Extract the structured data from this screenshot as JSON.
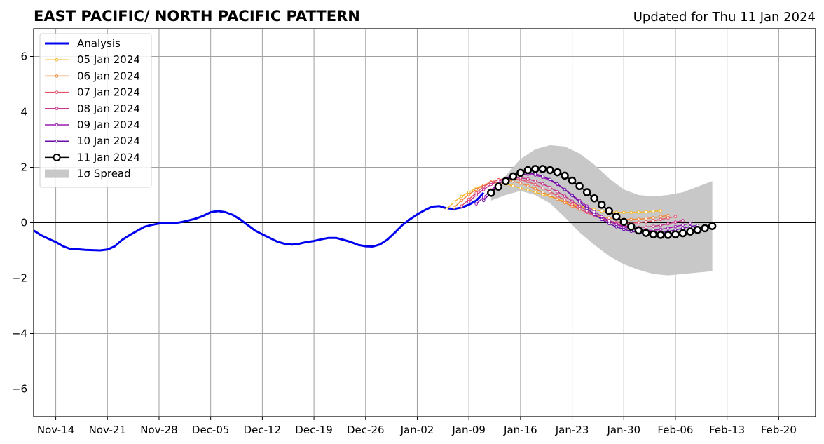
{
  "chart_data": {
    "type": "line",
    "title": "EAST PACIFIC/ NORTH PACIFIC PATTERN",
    "subtitle": "Updated for Thu 11 Jan 2024",
    "xlabel": "",
    "ylabel": "",
    "x_axis": {
      "unit": "date",
      "range": [
        "2023-11-11",
        "2024-02-25"
      ],
      "tick_labels": [
        "Nov-14",
        "Nov-21",
        "Nov-28",
        "Dec-05",
        "Dec-12",
        "Dec-19",
        "Dec-26",
        "Jan-02",
        "Jan-09",
        "Jan-16",
        "Jan-23",
        "Jan-30",
        "Feb-06",
        "Feb-13",
        "Feb-20"
      ],
      "tick_dates": [
        "2023-11-14",
        "2023-11-21",
        "2023-11-28",
        "2023-12-05",
        "2023-12-12",
        "2023-12-19",
        "2023-12-26",
        "2024-01-02",
        "2024-01-09",
        "2024-01-16",
        "2024-01-23",
        "2024-01-30",
        "2024-02-06",
        "2024-02-13",
        "2024-02-20"
      ]
    },
    "y_axis": {
      "range": [
        -7,
        7
      ],
      "ticks": [
        -6,
        -4,
        -2,
        0,
        2,
        4,
        6
      ],
      "tick_labels": [
        "−6",
        "−4",
        "−2",
        "0",
        "2",
        "4",
        "6"
      ]
    },
    "grid": true,
    "zero_line": true,
    "legend_position": "top-left",
    "legend": [
      "Analysis",
      "05 Jan 2024",
      "06 Jan 2024",
      "07 Jan 2024",
      "08 Jan 2024",
      "09 Jan 2024",
      "10 Jan 2024",
      "11 Jan 2024",
      "1σ Spread"
    ],
    "spread": {
      "name": "1σ Spread",
      "color": "#c8c8c8",
      "x": [
        "2024-01-12",
        "2024-01-14",
        "2024-01-16",
        "2024-01-18",
        "2024-01-20",
        "2024-01-22",
        "2024-01-24",
        "2024-01-26",
        "2024-01-28",
        "2024-01-30",
        "2024-02-01",
        "2024-02-03",
        "2024-02-05",
        "2024-02-07",
        "2024-02-09",
        "2024-02-11"
      ],
      "upper": [
        1.2,
        1.7,
        2.3,
        2.65,
        2.8,
        2.75,
        2.5,
        2.1,
        1.6,
        1.2,
        1.0,
        0.95,
        1.0,
        1.1,
        1.3,
        1.5
      ],
      "lower": [
        0.8,
        1.0,
        1.15,
        1.0,
        0.7,
        0.2,
        -0.35,
        -0.8,
        -1.2,
        -1.5,
        -1.7,
        -1.85,
        -1.9,
        -1.85,
        -1.8,
        -1.75
      ]
    },
    "series": [
      {
        "name": "Analysis",
        "color": "#0000ee",
        "style": "thick",
        "x": [
          "2023-11-11",
          "2023-11-12",
          "2023-11-13",
          "2023-11-14",
          "2023-11-15",
          "2023-11-16",
          "2023-11-17",
          "2023-11-18",
          "2023-11-19",
          "2023-11-20",
          "2023-11-21",
          "2023-11-22",
          "2023-11-23",
          "2023-11-24",
          "2023-11-25",
          "2023-11-26",
          "2023-11-27",
          "2023-11-28",
          "2023-11-29",
          "2023-11-30",
          "2023-12-01",
          "2023-12-02",
          "2023-12-03",
          "2023-12-04",
          "2023-12-05",
          "2023-12-06",
          "2023-12-07",
          "2023-12-08",
          "2023-12-09",
          "2023-12-10",
          "2023-12-11",
          "2023-12-12",
          "2023-12-13",
          "2023-12-14",
          "2023-12-15",
          "2023-12-16",
          "2023-12-17",
          "2023-12-18",
          "2023-12-19",
          "2023-12-20",
          "2023-12-21",
          "2023-12-22",
          "2023-12-23",
          "2023-12-24",
          "2023-12-25",
          "2023-12-26",
          "2023-12-27",
          "2023-12-28",
          "2023-12-29",
          "2023-12-30",
          "2023-12-31",
          "2024-01-01",
          "2024-01-02",
          "2024-01-03",
          "2024-01-04",
          "2024-01-05",
          "2024-01-06",
          "2024-01-07",
          "2024-01-08",
          "2024-01-09",
          "2024-01-10",
          "2024-01-11"
        ],
        "values": [
          -0.28,
          -0.45,
          -0.58,
          -0.7,
          -0.85,
          -0.95,
          -0.96,
          -0.98,
          -0.99,
          -1.0,
          -0.97,
          -0.85,
          -0.62,
          -0.45,
          -0.3,
          -0.15,
          -0.08,
          -0.03,
          -0.01,
          -0.02,
          0.02,
          0.08,
          0.15,
          0.25,
          0.38,
          0.42,
          0.38,
          0.28,
          0.12,
          -0.08,
          -0.28,
          -0.42,
          -0.55,
          -0.68,
          -0.76,
          -0.79,
          -0.76,
          -0.7,
          -0.66,
          -0.6,
          -0.55,
          -0.55,
          -0.62,
          -0.7,
          -0.8,
          -0.85,
          -0.86,
          -0.78,
          -0.6,
          -0.35,
          -0.08,
          0.12,
          0.3,
          0.45,
          0.58,
          0.6,
          0.52,
          0.5,
          0.55,
          0.65,
          0.8,
          1.08
        ]
      },
      {
        "name": "05 Jan 2024",
        "color": "#f5b92b",
        "x": [
          "2024-01-06",
          "2024-01-07",
          "2024-01-08",
          "2024-01-09",
          "2024-01-10",
          "2024-01-11",
          "2024-01-12",
          "2024-01-13",
          "2024-01-14",
          "2024-01-15",
          "2024-01-16",
          "2024-01-17",
          "2024-01-18",
          "2024-01-19",
          "2024-01-20",
          "2024-01-21",
          "2024-01-22",
          "2024-01-23",
          "2024-01-24",
          "2024-01-25",
          "2024-01-26",
          "2024-01-27",
          "2024-01-28",
          "2024-01-29",
          "2024-01-30",
          "2024-01-31",
          "2024-02-01",
          "2024-02-02",
          "2024-02-03",
          "2024-02-04"
        ],
        "values": [
          0.5,
          0.75,
          0.95,
          1.1,
          1.25,
          1.35,
          1.42,
          1.45,
          1.4,
          1.33,
          1.25,
          1.18,
          1.1,
          1.02,
          0.95,
          0.85,
          0.77,
          0.68,
          0.6,
          0.53,
          0.47,
          0.42,
          0.39,
          0.37,
          0.37,
          0.37,
          0.38,
          0.39,
          0.41,
          0.43
        ]
      },
      {
        "name": "06 Jan 2024",
        "color": "#f08a3a",
        "x": [
          "2024-01-07",
          "2024-01-08",
          "2024-01-09",
          "2024-01-10",
          "2024-01-11",
          "2024-01-12",
          "2024-01-13",
          "2024-01-14",
          "2024-01-15",
          "2024-01-16",
          "2024-01-17",
          "2024-01-18",
          "2024-01-19",
          "2024-01-20",
          "2024-01-21",
          "2024-01-22",
          "2024-01-23",
          "2024-01-24",
          "2024-01-25",
          "2024-01-26",
          "2024-01-27",
          "2024-01-28",
          "2024-01-29",
          "2024-01-30",
          "2024-01-31",
          "2024-02-01",
          "2024-02-02",
          "2024-02-03",
          "2024-02-04",
          "2024-02-05"
        ],
        "values": [
          0.55,
          0.8,
          1.02,
          1.2,
          1.35,
          1.47,
          1.55,
          1.55,
          1.5,
          1.42,
          1.33,
          1.22,
          1.1,
          0.98,
          0.85,
          0.72,
          0.6,
          0.48,
          0.38,
          0.3,
          0.22,
          0.17,
          0.14,
          0.12,
          0.12,
          0.13,
          0.15,
          0.18,
          0.22,
          0.26
        ]
      },
      {
        "name": "07 Jan 2024",
        "color": "#e3556e",
        "x": [
          "2024-01-08",
          "2024-01-09",
          "2024-01-10",
          "2024-01-11",
          "2024-01-12",
          "2024-01-13",
          "2024-01-14",
          "2024-01-15",
          "2024-01-16",
          "2024-01-17",
          "2024-01-18",
          "2024-01-19",
          "2024-01-20",
          "2024-01-21",
          "2024-01-22",
          "2024-01-23",
          "2024-01-24",
          "2024-01-25",
          "2024-01-26",
          "2024-01-27",
          "2024-01-28",
          "2024-01-29",
          "2024-01-30",
          "2024-01-31",
          "2024-02-01",
          "2024-02-02",
          "2024-02-03",
          "2024-02-04",
          "2024-02-05",
          "2024-02-06"
        ],
        "values": [
          0.6,
          0.85,
          1.08,
          1.3,
          1.45,
          1.55,
          1.6,
          1.58,
          1.55,
          1.48,
          1.38,
          1.25,
          1.12,
          0.97,
          0.82,
          0.66,
          0.5,
          0.37,
          0.25,
          0.15,
          0.07,
          0.01,
          -0.02,
          -0.02,
          0.0,
          0.03,
          0.07,
          0.12,
          0.17,
          0.22
        ]
      },
      {
        "name": "08 Jan 2024",
        "color": "#c4348c",
        "x": [
          "2024-01-09",
          "2024-01-10",
          "2024-01-11",
          "2024-01-12",
          "2024-01-13",
          "2024-01-14",
          "2024-01-15",
          "2024-01-16",
          "2024-01-17",
          "2024-01-18",
          "2024-01-19",
          "2024-01-20",
          "2024-01-21",
          "2024-01-22",
          "2024-01-23",
          "2024-01-24",
          "2024-01-25",
          "2024-01-26",
          "2024-01-27",
          "2024-01-28",
          "2024-01-29",
          "2024-01-30",
          "2024-01-31",
          "2024-02-01",
          "2024-02-02",
          "2024-02-03",
          "2024-02-04",
          "2024-02-05",
          "2024-02-06",
          "2024-02-07"
        ],
        "values": [
          0.75,
          1.0,
          1.2,
          1.38,
          1.5,
          1.58,
          1.62,
          1.62,
          1.58,
          1.5,
          1.4,
          1.27,
          1.12,
          0.96,
          0.78,
          0.6,
          0.43,
          0.28,
          0.15,
          0.04,
          -0.05,
          -0.11,
          -0.15,
          -0.17,
          -0.16,
          -0.13,
          -0.09,
          -0.04,
          0.02,
          0.08
        ]
      },
      {
        "name": "09 Jan 2024",
        "color": "#9b1bb0",
        "x": [
          "2024-01-10",
          "2024-01-11",
          "2024-01-12",
          "2024-01-13",
          "2024-01-14",
          "2024-01-15",
          "2024-01-16",
          "2024-01-17",
          "2024-01-18",
          "2024-01-19",
          "2024-01-20",
          "2024-01-21",
          "2024-01-22",
          "2024-01-23",
          "2024-01-24",
          "2024-01-25",
          "2024-01-26",
          "2024-01-27",
          "2024-01-28",
          "2024-01-29",
          "2024-01-30",
          "2024-01-31",
          "2024-02-01",
          "2024-02-02",
          "2024-02-03",
          "2024-02-04",
          "2024-02-05",
          "2024-02-06",
          "2024-02-07",
          "2024-02-08"
        ],
        "values": [
          0.68,
          0.92,
          1.18,
          1.4,
          1.57,
          1.7,
          1.75,
          1.75,
          1.72,
          1.64,
          1.52,
          1.38,
          1.2,
          1.0,
          0.8,
          0.6,
          0.4,
          0.22,
          0.07,
          -0.06,
          -0.16,
          -0.22,
          -0.26,
          -0.28,
          -0.27,
          -0.24,
          -0.2,
          -0.14,
          -0.08,
          -0.03
        ]
      },
      {
        "name": "10 Jan 2024",
        "color": "#6a0fa8",
        "x": [
          "2024-01-11",
          "2024-01-12",
          "2024-01-13",
          "2024-01-14",
          "2024-01-15",
          "2024-01-16",
          "2024-01-17",
          "2024-01-18",
          "2024-01-19",
          "2024-01-20",
          "2024-01-21",
          "2024-01-22",
          "2024-01-23",
          "2024-01-24",
          "2024-01-25",
          "2024-01-26",
          "2024-01-27",
          "2024-01-28",
          "2024-01-29",
          "2024-01-30",
          "2024-01-31",
          "2024-02-01",
          "2024-02-02",
          "2024-02-03",
          "2024-02-04",
          "2024-02-05",
          "2024-02-06",
          "2024-02-07",
          "2024-02-08",
          "2024-02-09"
        ],
        "values": [
          0.8,
          1.1,
          1.38,
          1.6,
          1.74,
          1.8,
          1.8,
          1.76,
          1.68,
          1.56,
          1.4,
          1.2,
          0.98,
          0.75,
          0.52,
          0.3,
          0.12,
          -0.03,
          -0.15,
          -0.24,
          -0.31,
          -0.36,
          -0.38,
          -0.38,
          -0.36,
          -0.32,
          -0.26,
          -0.2,
          -0.14,
          -0.1
        ]
      },
      {
        "name": "11 Jan 2024",
        "color": "#000000",
        "style": "open-circles",
        "x": [
          "2024-01-12",
          "2024-01-13",
          "2024-01-14",
          "2024-01-15",
          "2024-01-16",
          "2024-01-17",
          "2024-01-18",
          "2024-01-19",
          "2024-01-20",
          "2024-01-21",
          "2024-01-22",
          "2024-01-23",
          "2024-01-24",
          "2024-01-25",
          "2024-01-26",
          "2024-01-27",
          "2024-01-28",
          "2024-01-29",
          "2024-01-30",
          "2024-01-31",
          "2024-02-01",
          "2024-02-02",
          "2024-02-03",
          "2024-02-04",
          "2024-02-05",
          "2024-02-06",
          "2024-02-07",
          "2024-02-08",
          "2024-02-09",
          "2024-02-10",
          "2024-02-11"
        ],
        "values": [
          1.08,
          1.3,
          1.5,
          1.67,
          1.8,
          1.9,
          1.94,
          1.94,
          1.9,
          1.82,
          1.7,
          1.52,
          1.32,
          1.1,
          0.88,
          0.65,
          0.43,
          0.22,
          0.03,
          -0.14,
          -0.28,
          -0.37,
          -0.42,
          -0.44,
          -0.44,
          -0.42,
          -0.38,
          -0.32,
          -0.26,
          -0.2,
          -0.12
        ]
      }
    ]
  }
}
